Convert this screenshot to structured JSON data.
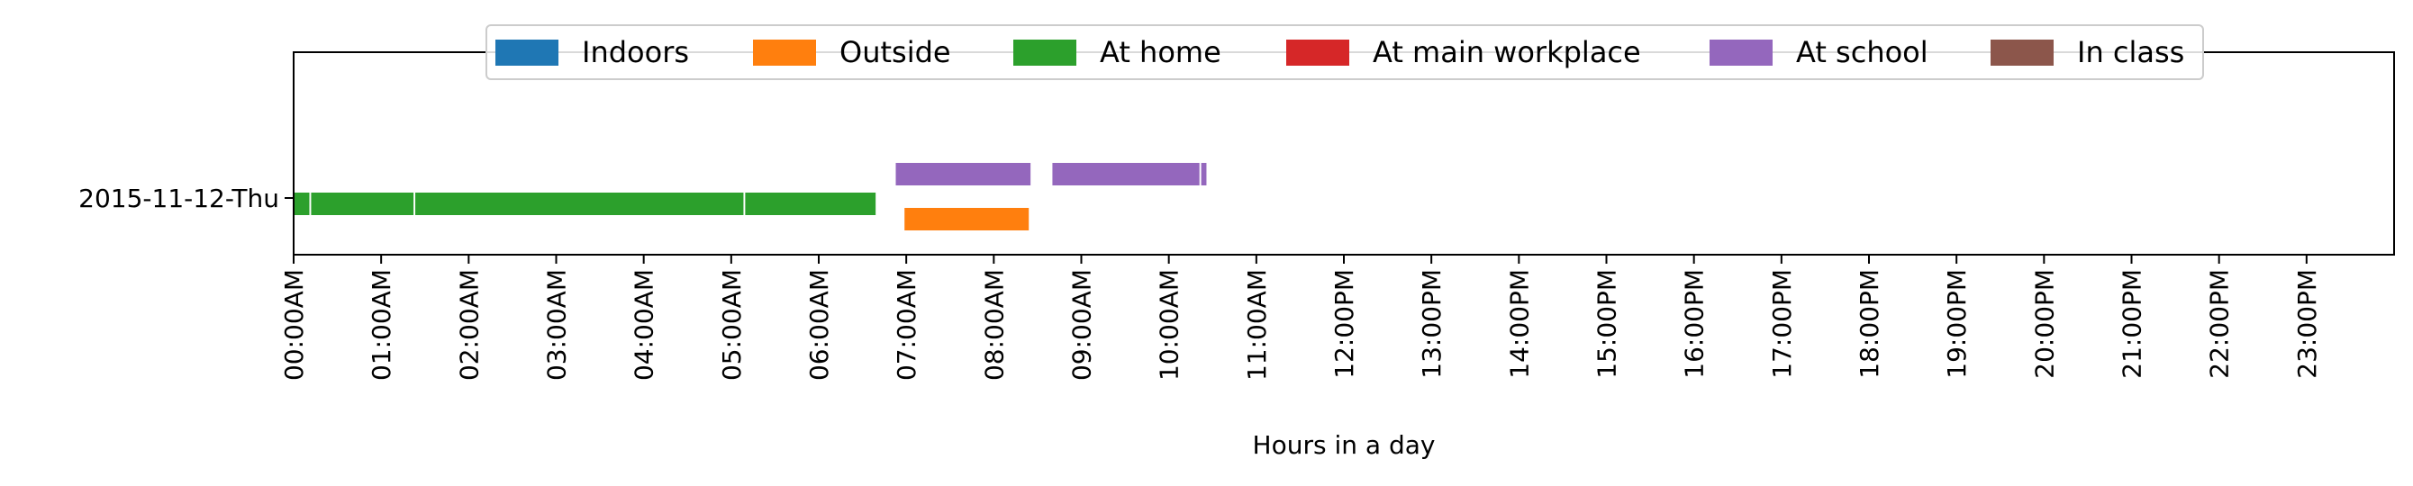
{
  "chart_data": {
    "type": "timeline",
    "title": "",
    "xlabel": "Hours in a day",
    "ylabel": "",
    "xlim": [
      0,
      24
    ],
    "categories": [
      "2015-11-12-Thu"
    ],
    "x_ticks": [
      "00:00AM",
      "01:00AM",
      "02:00AM",
      "03:00AM",
      "04:00AM",
      "05:00AM",
      "06:00AM",
      "07:00AM",
      "08:00AM",
      "09:00AM",
      "10:00AM",
      "11:00AM",
      "12:00PM",
      "13:00PM",
      "14:00PM",
      "15:00PM",
      "16:00PM",
      "17:00PM",
      "18:00PM",
      "19:00PM",
      "20:00PM",
      "21:00PM",
      "22:00PM",
      "23:00PM"
    ],
    "grid": false,
    "legend_position": "top-center",
    "series": [
      {
        "name": "Indoors",
        "color": "#1f77b4",
        "intervals": []
      },
      {
        "name": "Outside",
        "color": "#ff7f0e",
        "intervals": [
          [
            6.98,
            8.4
          ]
        ]
      },
      {
        "name": "At home",
        "color": "#2ca02c",
        "intervals": [
          [
            0.0,
            0.18
          ],
          [
            0.2,
            1.37
          ],
          [
            1.39,
            5.14
          ],
          [
            5.16,
            6.65
          ]
        ]
      },
      {
        "name": "At main workplace",
        "color": "#d62728",
        "intervals": []
      },
      {
        "name": "At school",
        "color": "#9467bd",
        "intervals": [
          [
            6.88,
            8.42
          ],
          [
            8.67,
            10.35
          ],
          [
            10.37,
            10.43
          ]
        ]
      },
      {
        "name": "In class",
        "color": "#8c564b",
        "intervals": []
      }
    ]
  }
}
